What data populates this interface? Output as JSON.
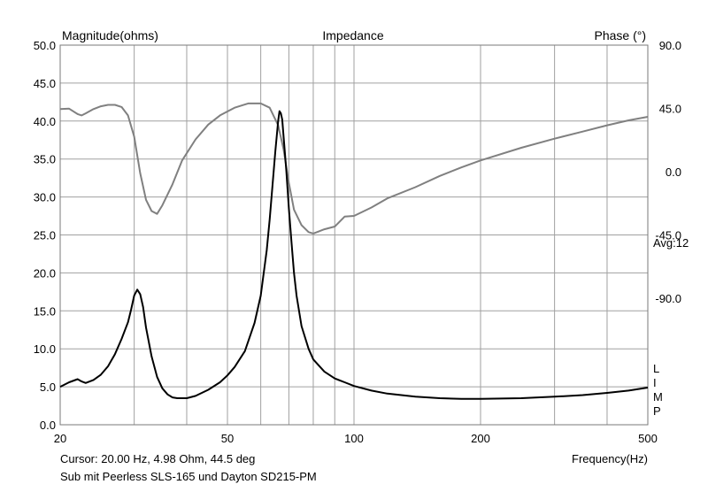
{
  "chart_data": {
    "type": "line",
    "title": "Impedance",
    "left_axis_label": "Magnitude(ohms)",
    "right_axis_label": "Phase (°)",
    "x_axis_label": "Frequency(Hz)",
    "x_scale": "log",
    "xlim": [
      20,
      500
    ],
    "ylim_left": [
      0,
      50
    ],
    "ylim_right": [
      -180,
      90
    ],
    "x_ticks": [
      {
        "value": 20,
        "label": "20"
      },
      {
        "value": 50,
        "label": "50"
      },
      {
        "value": 100,
        "label": "100"
      },
      {
        "value": 200,
        "label": "200"
      },
      {
        "value": 500,
        "label": "500"
      }
    ],
    "y_ticks_left": [
      "50.0",
      "45.0",
      "40.0",
      "35.0",
      "30.0",
      "25.0",
      "20.0",
      "15.0",
      "10.0",
      "5.0",
      "0.0"
    ],
    "y_ticks_right": [
      {
        "value": 90,
        "label": "90.0"
      },
      {
        "value": 45,
        "label": "45.0"
      },
      {
        "value": 0,
        "label": "0.0"
      },
      {
        "value": -45,
        "label": "-45.0"
      },
      {
        "value": -90,
        "label": "-90.0"
      }
    ],
    "grid": true,
    "avg_label": "Avg:12",
    "legend_letters": [
      "L",
      "I",
      "M",
      "P"
    ],
    "cursor_text": "Cursor: 20.00 Hz, 4.98 Ohm, 44.5 deg",
    "description_text": "Sub mit Peerless SLS-165 und Dayton SD215-PM",
    "colors": {
      "magnitude": "#000000",
      "phase": "#808080",
      "grid": "#a0a0a0"
    },
    "series": [
      {
        "axis": "left",
        "x": [
          20,
          21,
          22,
          22.5,
          23,
          24,
          25,
          26,
          27,
          28,
          29,
          29.5,
          30,
          30.5,
          31,
          31.5,
          32,
          33,
          34,
          35,
          36,
          37,
          38,
          40,
          42,
          45,
          48,
          50,
          52,
          55,
          58,
          60,
          62,
          63,
          64,
          65,
          66,
          66.5,
          67,
          67.5,
          68,
          69,
          70,
          71,
          72,
          73,
          75,
          78,
          80,
          85,
          90,
          95,
          100,
          110,
          120,
          140,
          160,
          180,
          200,
          250,
          300,
          350,
          400,
          450,
          500
        ],
        "y": [
          5.0,
          5.6,
          6.0,
          5.7,
          5.5,
          5.9,
          6.6,
          7.7,
          9.3,
          11.3,
          13.5,
          15.2,
          17.0,
          17.8,
          17.2,
          15.5,
          12.8,
          9.0,
          6.3,
          4.8,
          4.0,
          3.6,
          3.5,
          3.5,
          3.8,
          4.6,
          5.6,
          6.5,
          7.6,
          9.7,
          13.4,
          17.0,
          23.0,
          27.0,
          31.5,
          36.0,
          40.0,
          41.3,
          41.0,
          40.2,
          38.0,
          33.5,
          28.5,
          24.0,
          20.0,
          17.0,
          13.0,
          10.0,
          8.6,
          7.0,
          6.1,
          5.6,
          5.1,
          4.5,
          4.1,
          3.7,
          3.5,
          3.4,
          3.4,
          3.5,
          3.7,
          3.9,
          4.2,
          4.5,
          4.9
        ]
      },
      {
        "axis": "right",
        "x": [
          20,
          21,
          22,
          22.5,
          23,
          24,
          25,
          26,
          27,
          28,
          29,
          30,
          31,
          32,
          33,
          34,
          35,
          37,
          39,
          42,
          45,
          48,
          52,
          56,
          60,
          63,
          66,
          68,
          70,
          72,
          75,
          78,
          80,
          85,
          90,
          95,
          100,
          110,
          120,
          140,
          160,
          180,
          200,
          250,
          300,
          350,
          400,
          450,
          500
        ],
        "y": [
          44.5,
          44.8,
          41.0,
          40.0,
          41.5,
          44.5,
          46.5,
          47.5,
          47.5,
          46.0,
          40.0,
          25.0,
          -1.0,
          -20.0,
          -28.0,
          -30.0,
          -24.0,
          -9.0,
          8.0,
          23.0,
          33.5,
          40.0,
          45.5,
          48.5,
          48.5,
          45.5,
          33.0,
          16.0,
          -8.0,
          -27.0,
          -38.0,
          -43.0,
          -44.0,
          -41.0,
          -39.0,
          -32.0,
          -31.5,
          -25.5,
          -19.0,
          -11.0,
          -3.0,
          3.0,
          8.0,
          17.0,
          23.5,
          28.5,
          33.0,
          36.5,
          39.0
        ]
      }
    ]
  }
}
